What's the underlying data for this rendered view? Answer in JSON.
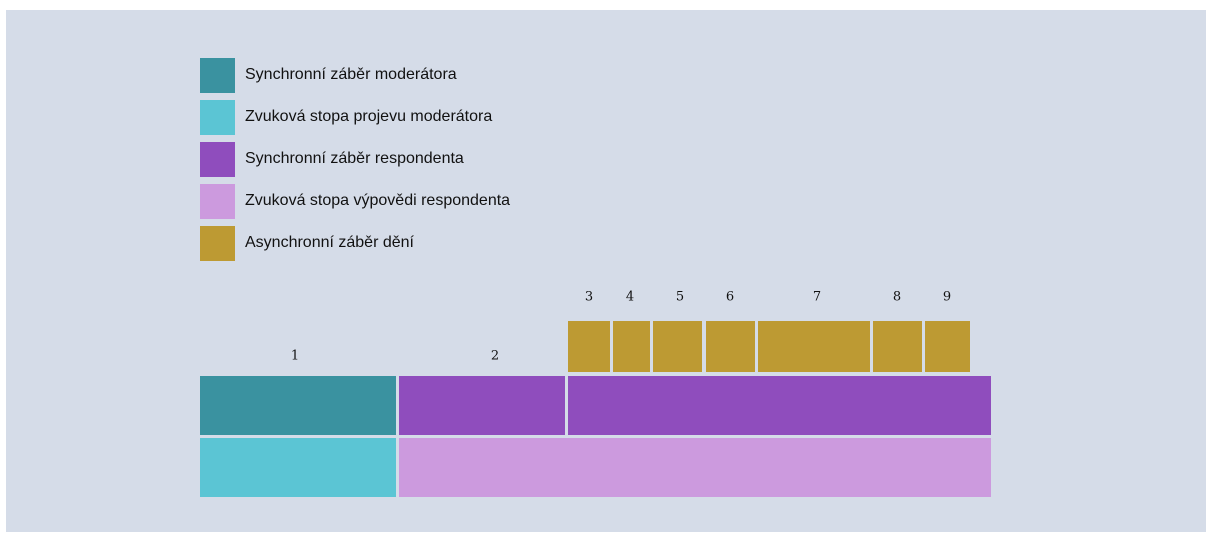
{
  "legend": [
    {
      "label": "Synchronní záběr moderátora",
      "color": "#3a92a0"
    },
    {
      "label": "Zvuková stopa projevu moderátora",
      "color": "#5bc5d4"
    },
    {
      "label": "Synchronní záběr respondenta",
      "color": "#8f4dbd"
    },
    {
      "label": "Zvuková stopa výpovědi respondenta",
      "color": "#cc9ade"
    },
    {
      "label": "Asynchronní záběr dění",
      "color": "#bd9a33"
    }
  ],
  "segments": [
    1,
    2,
    3,
    4,
    5,
    6,
    7,
    8,
    9
  ]
}
